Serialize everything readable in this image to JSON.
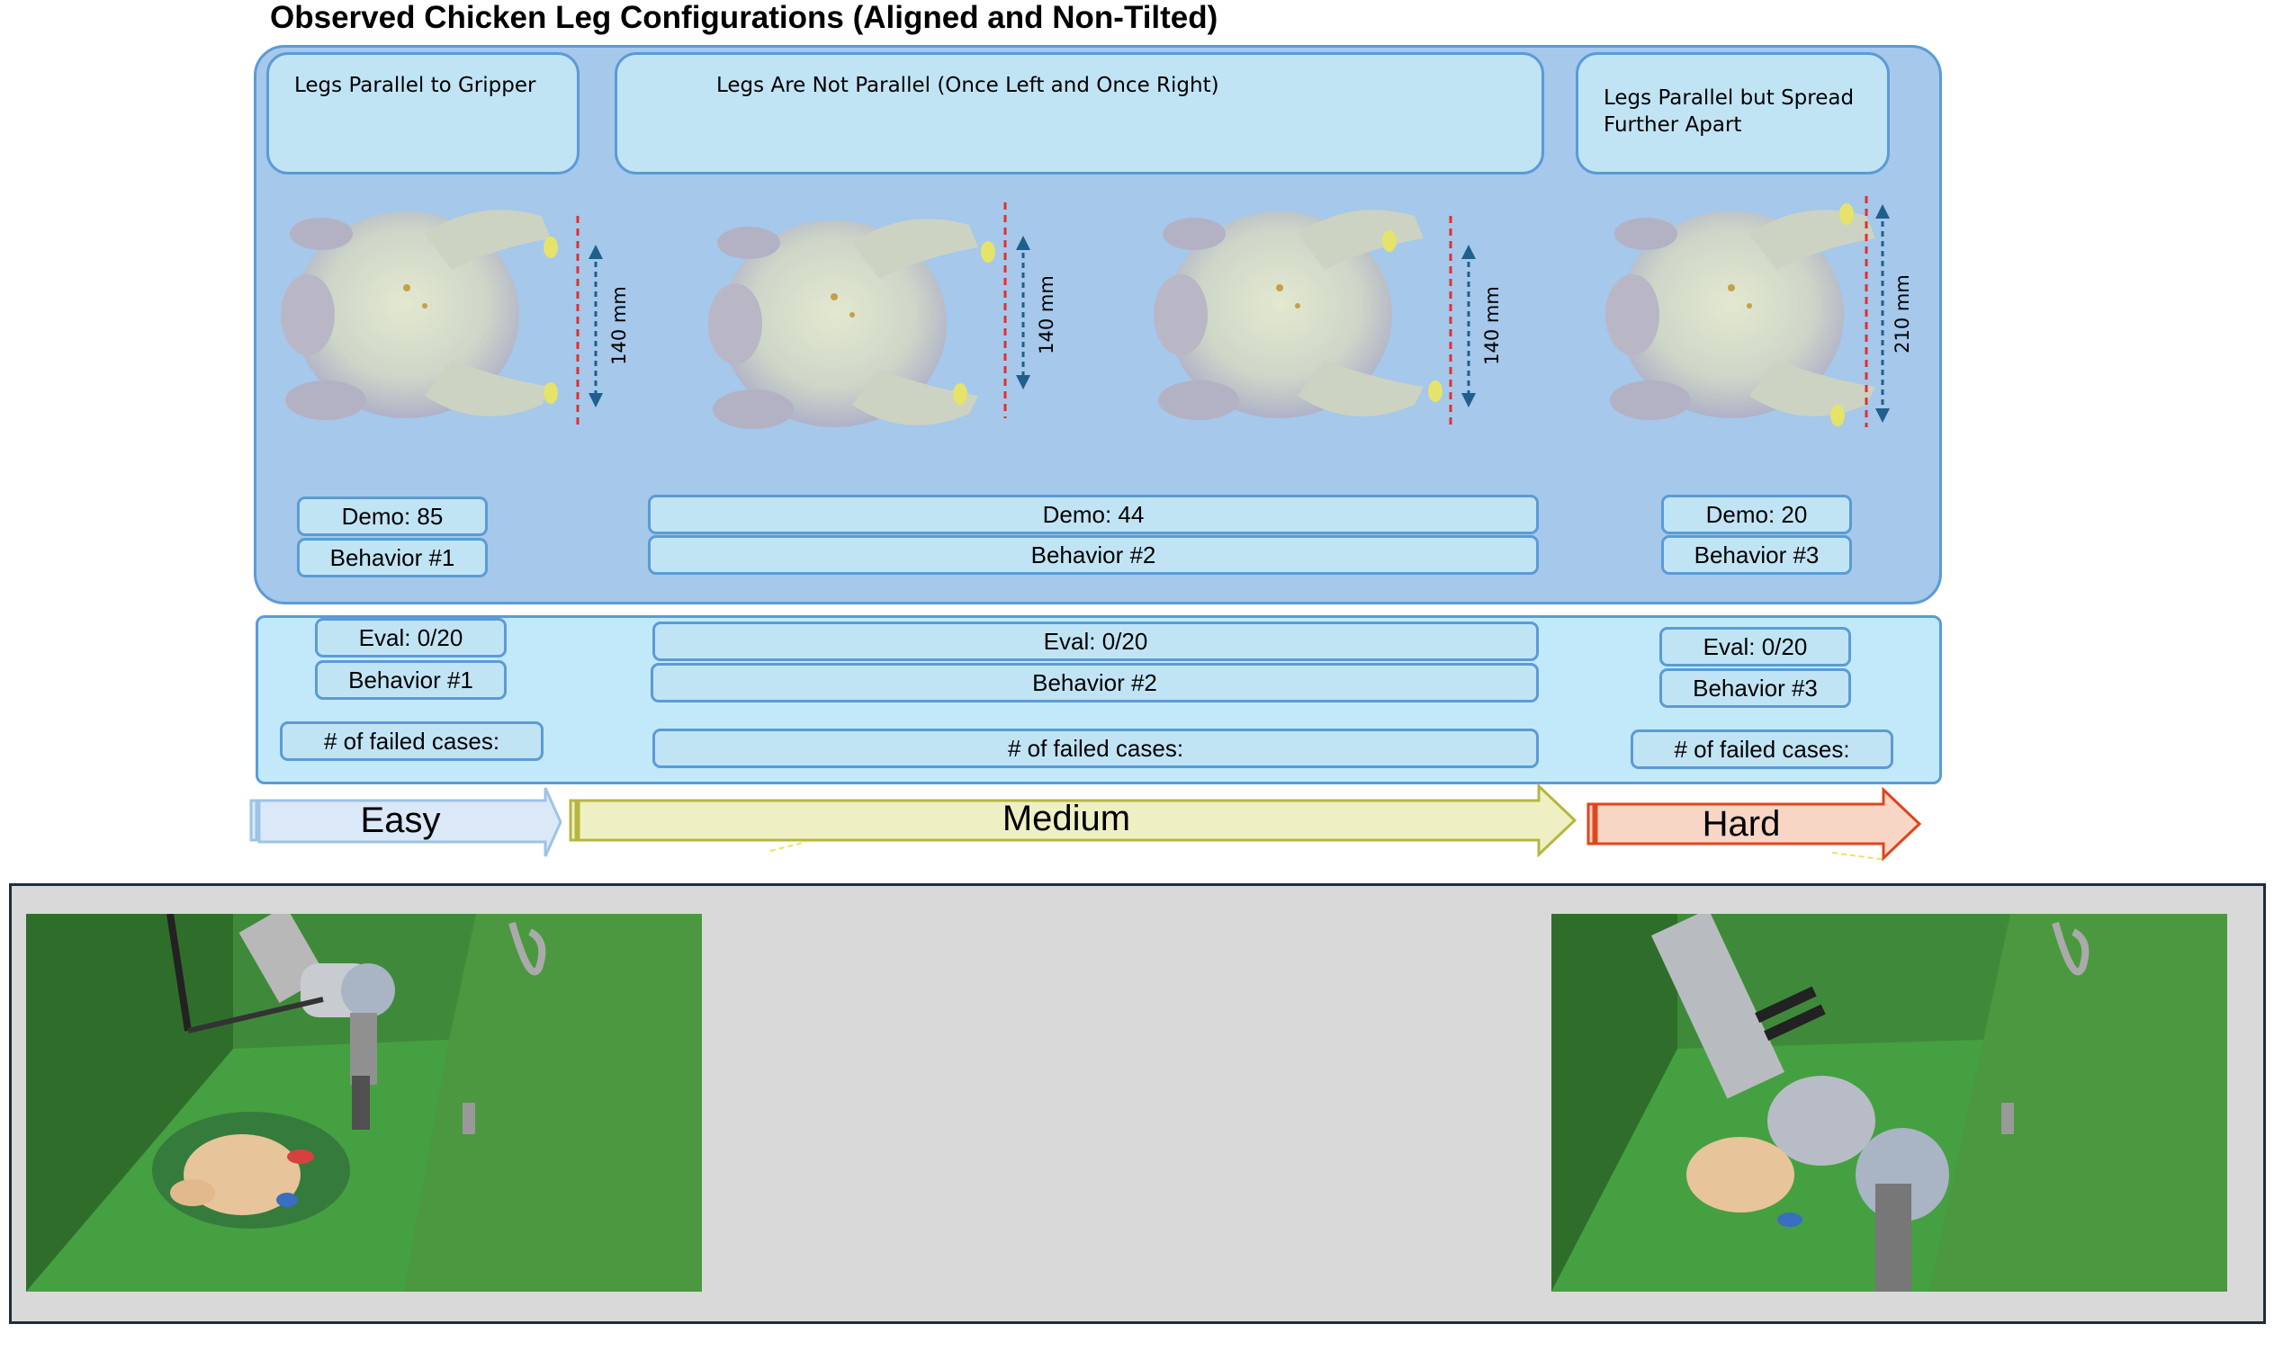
{
  "title": "Observed Chicken Leg Configurations (Aligned and Non-Tilted)",
  "categories": [
    {
      "caption": "Legs Parallel to Gripper",
      "demo": "Demo: 85",
      "behavior": "Behavior #1",
      "eval": "Eval: 0/20",
      "eval_behavior": "Behavior #1",
      "failed": "# of failed cases:"
    },
    {
      "caption": "Legs Are Not Parallel (Once Left and Once Right)",
      "demo": "Demo: 44",
      "behavior": "Behavior #2",
      "eval": "Eval: 0/20",
      "eval_behavior": "Behavior #2",
      "failed": "# of failed cases:"
    },
    {
      "caption": "Legs Parallel but Spread Further Apart",
      "demo": "Demo: 20",
      "behavior": "Behavior #3",
      "eval": "Eval: 0/20",
      "eval_behavior": "Behavior #3",
      "failed": "# of failed cases:"
    }
  ],
  "measurements": [
    "140 mm",
    "140 mm",
    "140 mm",
    "210 mm"
  ],
  "difficulty": {
    "easy": "Easy",
    "medium": "Medium",
    "hard": "Hard"
  },
  "colors": {
    "panel": "#a5c8eb",
    "panel_border": "#5b9bd5",
    "box": "#c1e4f5",
    "easy": "#dae8f8",
    "medium": "#eef0c4",
    "hard": "#f8d6c6",
    "dim_line": "#e03030",
    "dim_arrow": "#1f5f8b"
  }
}
